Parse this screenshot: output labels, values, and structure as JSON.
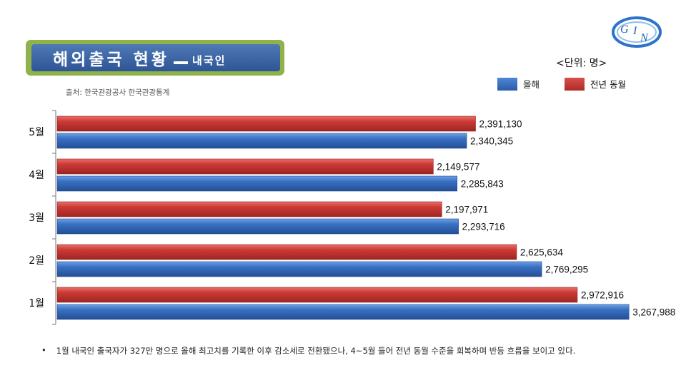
{
  "title": {
    "main": "해외출국 현황",
    "sub": "내국인"
  },
  "source": "출처: 한국관광공사 한국관광통계",
  "unit": "<단위: 명>",
  "logo_text": "GIN",
  "legend": [
    {
      "label": "올해",
      "color": "#2f65b4"
    },
    {
      "label": "전년 동월",
      "color": "#c0332f"
    }
  ],
  "note": {
    "bullet": "•",
    "text": "1월 내국인 출국자가 327만 명으로 올해 최고치를 기록한 이후 감소세로 전환됐으나, 4~5월 들어 전년 동월 수준을 회복하며 반등 흐름을 보이고 있다."
  },
  "chart_data": {
    "type": "bar",
    "orientation": "horizontal",
    "categories": [
      "5월",
      "4월",
      "3월",
      "2월",
      "1월"
    ],
    "series": [
      {
        "name": "전년 동월",
        "color": "#c0332f",
        "values": [
          2391130,
          2149577,
          2197971,
          2625634,
          2972916
        ],
        "labels": [
          "2,391,130",
          "2,149,577",
          "2,197,971",
          "2,625,634",
          "2,972,916"
        ]
      },
      {
        "name": "올해",
        "color": "#2f65b4",
        "values": [
          2340345,
          2285843,
          2293716,
          2769295,
          3267988
        ],
        "labels": [
          "2,340,345",
          "2,285,843",
          "2,293,716",
          "2,769,295",
          "3,267,988"
        ]
      }
    ],
    "xlim": [
      0,
      3500000
    ],
    "grid": false,
    "legend_position": "top-right"
  }
}
